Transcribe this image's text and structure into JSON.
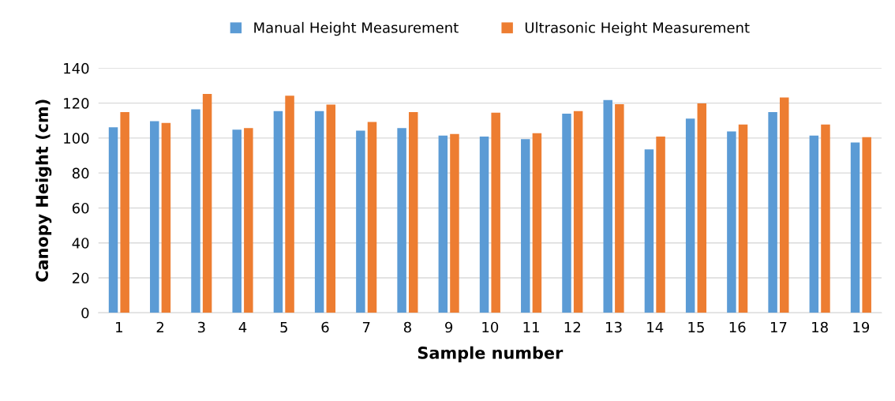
{
  "chart_data": {
    "type": "bar",
    "xlabel": "Sample number",
    "ylabel": "Canopy Height (cm)",
    "categories": [
      "1",
      "2",
      "3",
      "4",
      "5",
      "6",
      "7",
      "8",
      "9",
      "10",
      "11",
      "12",
      "13",
      "14",
      "15",
      "16",
      "17",
      "18",
      "19"
    ],
    "series": [
      {
        "name": "Manual Height Measurement",
        "color": "#5b9bd5",
        "values": [
          106.2,
          109.7,
          116.5,
          104.8,
          115.4,
          115.4,
          104.3,
          105.7,
          101.4,
          100.9,
          99.4,
          114.0,
          121.7,
          93.5,
          111.1,
          103.8,
          114.9,
          101.4,
          97.5
        ]
      },
      {
        "name": "Ultrasonic Height Measurement",
        "color": "#ed7d31",
        "values": [
          114.9,
          108.6,
          125.2,
          105.7,
          124.2,
          119.2,
          109.2,
          114.9,
          102.3,
          114.5,
          102.8,
          115.4,
          119.4,
          100.9,
          119.8,
          107.7,
          123.2,
          107.7,
          100.5
        ]
      }
    ],
    "ylim": [
      0,
      140
    ],
    "yticks": [
      0,
      20,
      40,
      60,
      80,
      100,
      120,
      140
    ],
    "grid": "y",
    "legend": "top"
  }
}
